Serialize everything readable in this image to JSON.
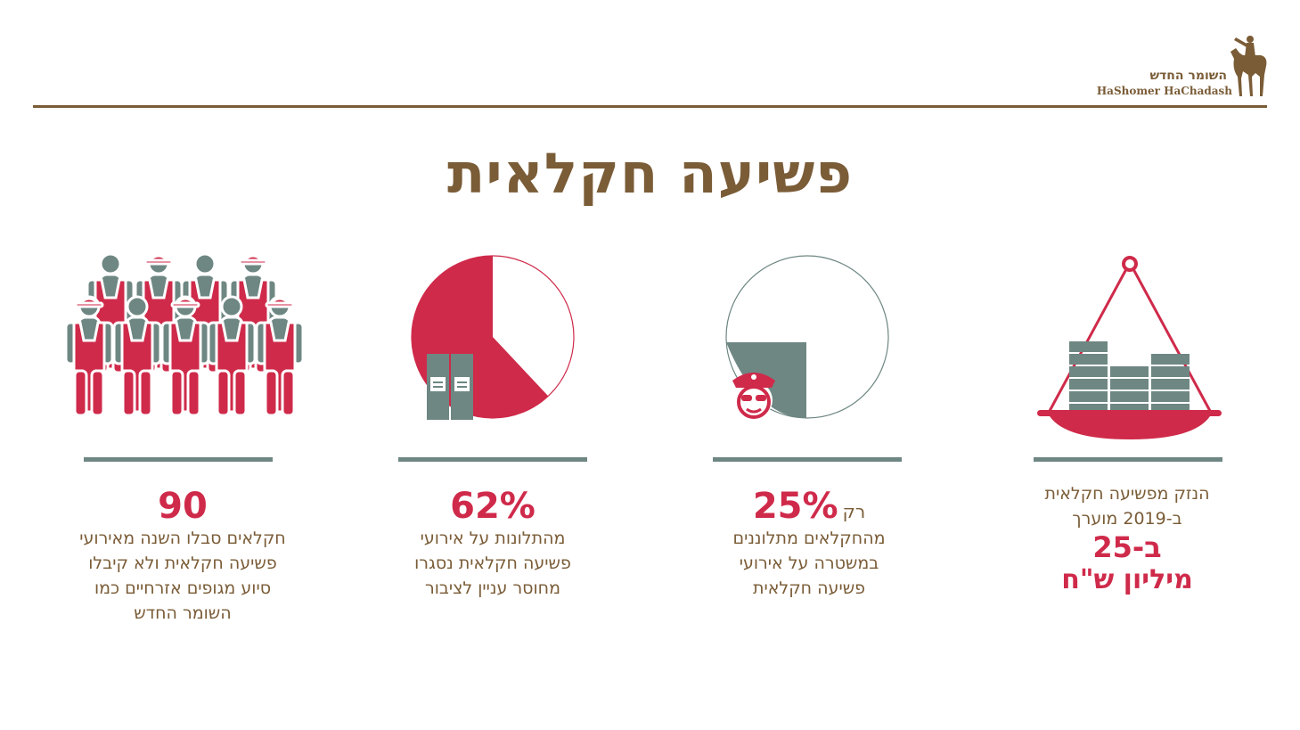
{
  "logo": {
    "hebrew": "השומר החדש",
    "english": "HaShomer HaChadash"
  },
  "title": "פשיעה חקלאית",
  "colors": {
    "brown": "#7a5c37",
    "red": "#cf2a4a",
    "gray": "#6e8783"
  },
  "stats": [
    {
      "icon": "farmers-crowd-icon",
      "value": "90",
      "description": [
        "חקלאים סבלו השנה מאירועי",
        "פשיעה חקלאית ולא קיבלו",
        "סיוע מגופים אזרחיים כמו",
        "השומר החדש"
      ]
    },
    {
      "icon": "pie-closed-files-icon",
      "value": "62%",
      "pie_fraction": 0.62,
      "description": [
        "מהתלונות על אירועי",
        "פשיעה חקלאית נסגרו",
        "מחוסר עניין לציבור"
      ]
    },
    {
      "icon": "pie-police-icon",
      "prefix": "רק",
      "value": "25%",
      "pie_fraction": 0.25,
      "description": [
        "מהחקלאים מתלוננים",
        "במשטרה על אירועי",
        "פשיעה חקלאית"
      ]
    },
    {
      "icon": "money-scale-icon",
      "description": [
        "הנזק מפשיעה חקלאית",
        "ב-2019 מוערך"
      ],
      "value_line1": "ב-25",
      "value_line2": "מיליון ש\"ח"
    }
  ]
}
